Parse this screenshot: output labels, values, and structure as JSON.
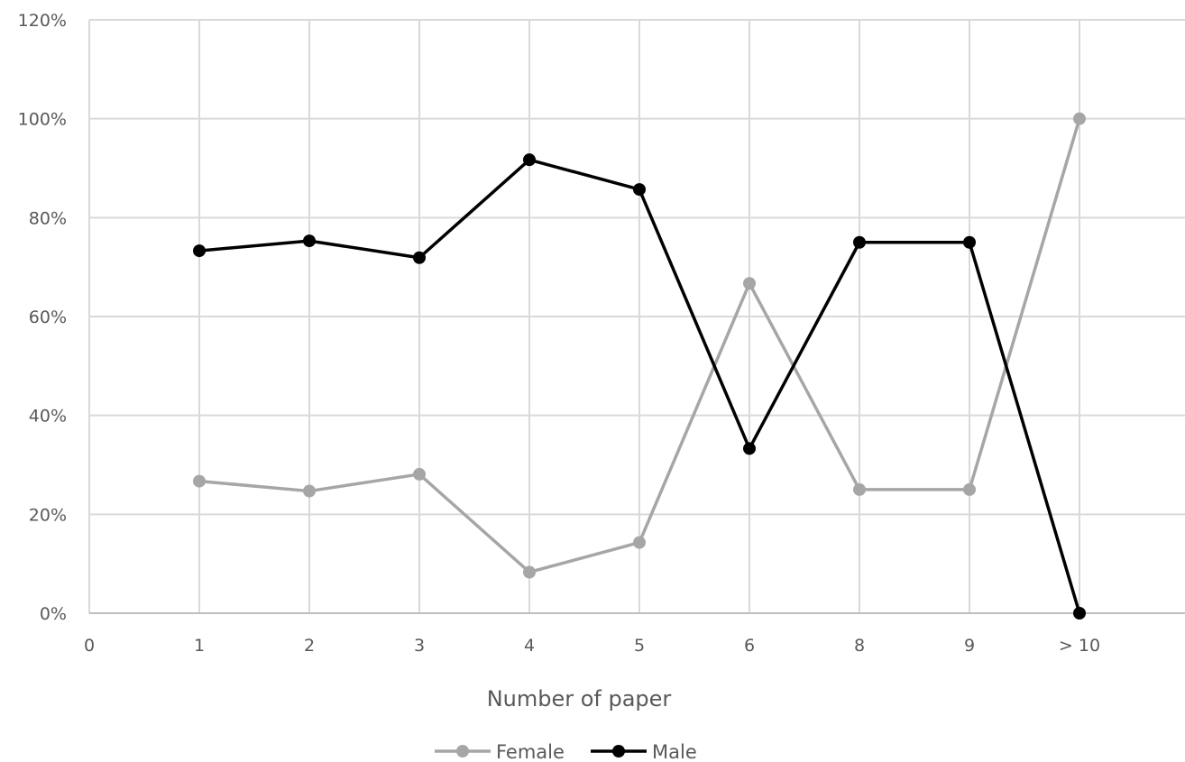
{
  "chart_data": {
    "type": "line",
    "title": "",
    "xlabel": "Number of paper",
    "ylabel": "",
    "categories": [
      "0",
      "1",
      "2",
      "3",
      "4",
      "5",
      "6",
      "8",
      "9",
      "> 10"
    ],
    "y_ticks": [
      "0%",
      "20%",
      "40%",
      "60%",
      "80%",
      "100%",
      "120%"
    ],
    "ylim": [
      0,
      120
    ],
    "grid": true,
    "legend_position": "bottom",
    "series": [
      {
        "name": "Female",
        "color": "#a6a6a6",
        "values": [
          null,
          26.7,
          24.7,
          28.1,
          8.3,
          14.3,
          66.7,
          25.0,
          25.0,
          100.0
        ]
      },
      {
        "name": "Male",
        "color": "#000000",
        "values": [
          null,
          73.3,
          75.3,
          71.9,
          91.7,
          85.7,
          33.3,
          75.0,
          75.0,
          0.0
        ]
      }
    ]
  }
}
